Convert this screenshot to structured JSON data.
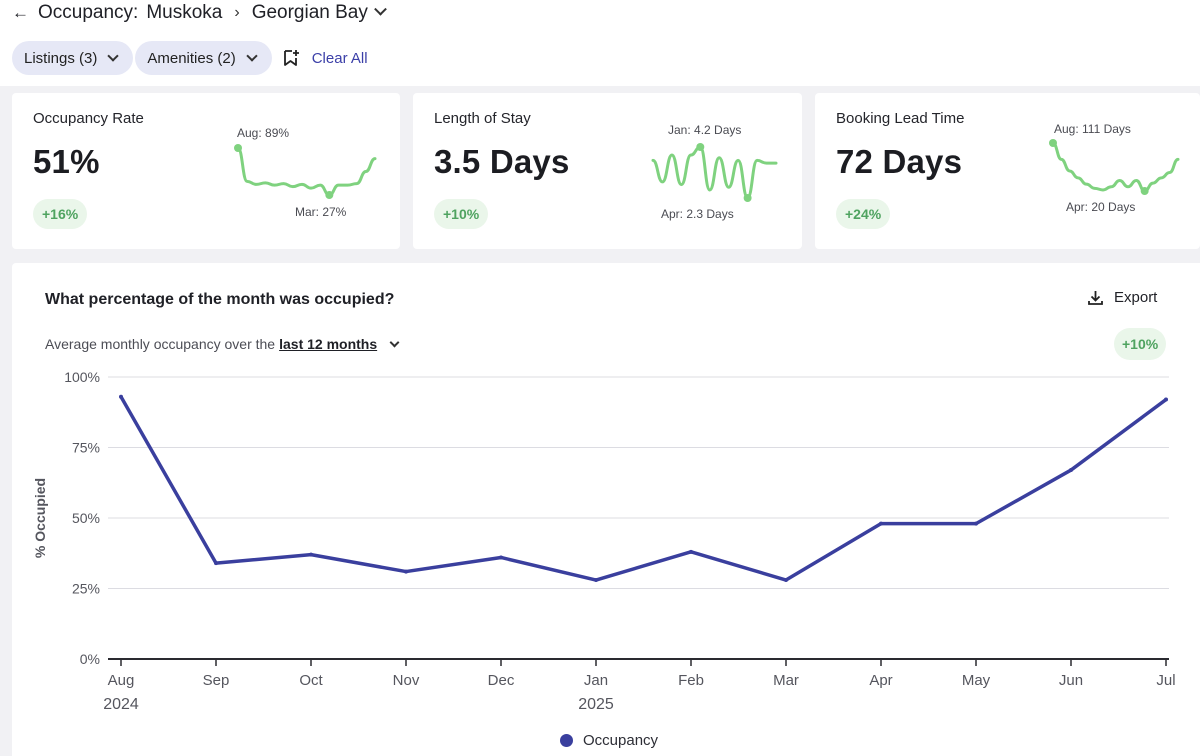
{
  "breadcrumb": {
    "back_icon": "arrow-left-icon",
    "root": "Occupancy:",
    "region": "Muskoka",
    "subregion": "Georgian Bay"
  },
  "filters": {
    "listings": "Listings (3)",
    "amenities": "Amenities (2)",
    "clear_all": "Clear All"
  },
  "cards": [
    {
      "title": "Occupancy Rate",
      "value": "51%",
      "badge": "+16%",
      "max_label": "Aug: 89%",
      "min_label": "Mar: 27%",
      "spark": [
        89,
        45,
        41,
        43,
        40,
        42,
        38,
        41,
        36,
        40,
        27,
        40,
        40,
        42,
        58,
        75
      ]
    },
    {
      "title": "Length of Stay",
      "value": "3.5 Days",
      "badge": "+10%",
      "max_label": "Jan: 4.2 Days",
      "min_label": "Apr: 2.3 Days",
      "spark": [
        3.7,
        2.9,
        3.9,
        2.8,
        3.9,
        4.2,
        2.6,
        3.8,
        2.7,
        3.7,
        2.3,
        3.7,
        3.6,
        3.6
      ]
    },
    {
      "title": "Booking Lead Time",
      "value": "72 Days",
      "badge": "+24%",
      "max_label": "Aug: 111 Days",
      "min_label": "Apr: 20 Days",
      "spark": [
        111,
        80,
        58,
        45,
        33,
        25,
        22,
        28,
        40,
        28,
        40,
        20,
        35,
        45,
        55,
        80
      ]
    }
  ],
  "panel": {
    "title": "What percentage of the month was occupied?",
    "subtitle_prefix": "Average monthly occupancy over the",
    "period": "last 12 months",
    "export": "Export",
    "badge": "+10%"
  },
  "colors": {
    "line": "#3a3f9e",
    "spark": "#7fd27f",
    "badge_bg": "#eaf6ea",
    "badge_text": "#4fa360"
  },
  "chart_data": {
    "type": "line",
    "ylabel": "% Occupied",
    "ylim": [
      0,
      100
    ],
    "yticks": [
      "0%",
      "25%",
      "50%",
      "75%",
      "100%"
    ],
    "ytick_values": [
      0,
      25,
      50,
      75,
      100
    ],
    "categories": [
      "Aug",
      "Sep",
      "Oct",
      "Nov",
      "Dec",
      "Jan",
      "Feb",
      "Mar",
      "Apr",
      "May",
      "Jun",
      "Jul"
    ],
    "year_labels": [
      {
        "index": 0,
        "label": "2024"
      },
      {
        "index": 5,
        "label": "2025"
      }
    ],
    "series": [
      {
        "name": "Occupancy",
        "values": [
          93,
          34,
          37,
          31,
          36,
          28,
          38,
          28,
          48,
          48,
          67,
          92
        ]
      }
    ],
    "grid": true,
    "legend": "bottom"
  }
}
